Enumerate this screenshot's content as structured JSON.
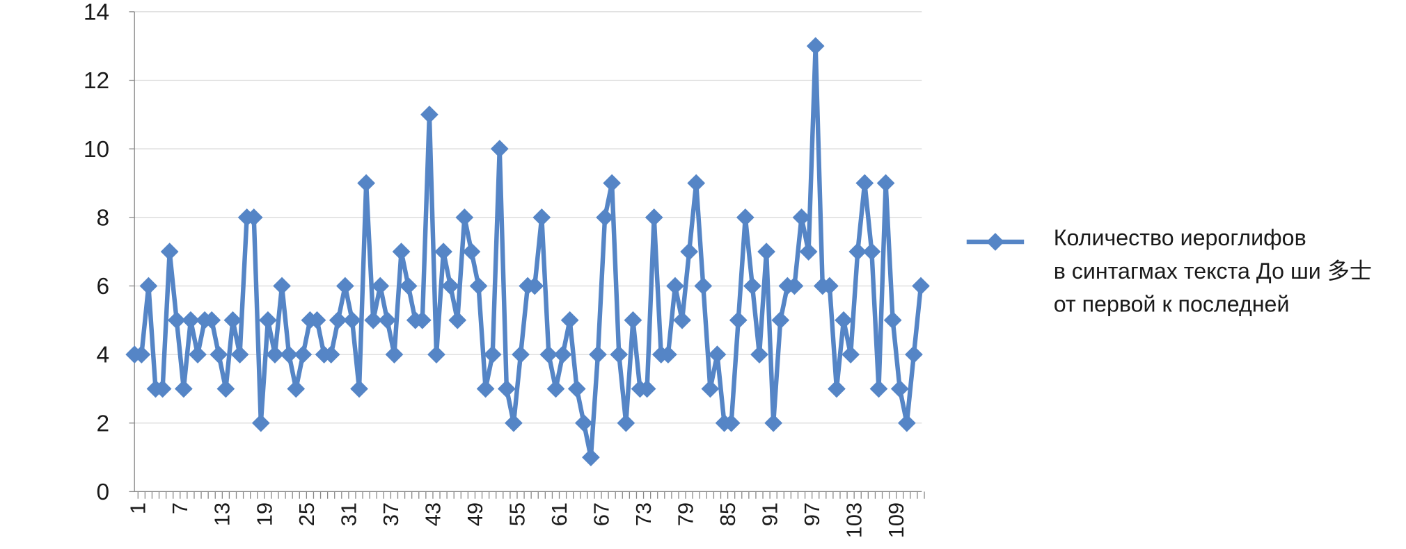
{
  "chart_data": {
    "type": "line",
    "categories": [
      1,
      null,
      null,
      null,
      null,
      null,
      7,
      null,
      null,
      null,
      null,
      null,
      13,
      null,
      null,
      null,
      null,
      null,
      19,
      null,
      null,
      null,
      null,
      null,
      25,
      null,
      null,
      null,
      null,
      null,
      31,
      null,
      null,
      null,
      null,
      null,
      37,
      null,
      null,
      null,
      null,
      null,
      43,
      null,
      null,
      null,
      null,
      null,
      49,
      null,
      null,
      null,
      null,
      null,
      55,
      null,
      null,
      null,
      null,
      null,
      61,
      null,
      null,
      null,
      null,
      null,
      67,
      null,
      null,
      null,
      null,
      null,
      73,
      null,
      null,
      null,
      null,
      null,
      79,
      null,
      null,
      null,
      null,
      null,
      85,
      null,
      null,
      null,
      null,
      null,
      91,
      null,
      null,
      null,
      null,
      null,
      97,
      null,
      null,
      null,
      null,
      null,
      103,
      null,
      null,
      null,
      null,
      null,
      109,
      null,
      null,
      null,
      null
    ],
    "series": [
      {
        "name": "Количество иероглифов\nв синтагмах текста До ши 多士\nот первой к последней",
        "color": "#5585c6",
        "values": [
          4,
          4,
          6,
          3,
          3,
          7,
          5,
          3,
          5,
          4,
          5,
          5,
          4,
          3,
          5,
          4,
          8,
          8,
          2,
          5,
          4,
          6,
          4,
          3,
          4,
          5,
          5,
          4,
          4,
          5,
          6,
          5,
          3,
          9,
          5,
          6,
          5,
          4,
          7,
          6,
          5,
          5,
          11,
          4,
          7,
          6,
          5,
          8,
          7,
          6,
          3,
          4,
          10,
          3,
          2,
          4,
          6,
          6,
          8,
          4,
          3,
          4,
          5,
          3,
          2,
          1,
          4,
          8,
          9,
          4,
          2,
          5,
          3,
          3,
          8,
          4,
          4,
          6,
          5,
          7,
          9,
          6,
          3,
          4,
          2,
          2,
          5,
          8,
          6,
          4,
          7,
          2,
          5,
          6,
          6,
          8,
          7,
          13,
          6,
          6,
          3,
          5,
          4,
          7,
          9,
          7,
          3,
          9,
          5,
          3,
          2,
          4,
          6
        ]
      }
    ],
    "ylim": [
      0,
      14
    ],
    "yticks": [
      0,
      2,
      4,
      6,
      8,
      10,
      12,
      14
    ],
    "grid": true,
    "legend": "right"
  }
}
